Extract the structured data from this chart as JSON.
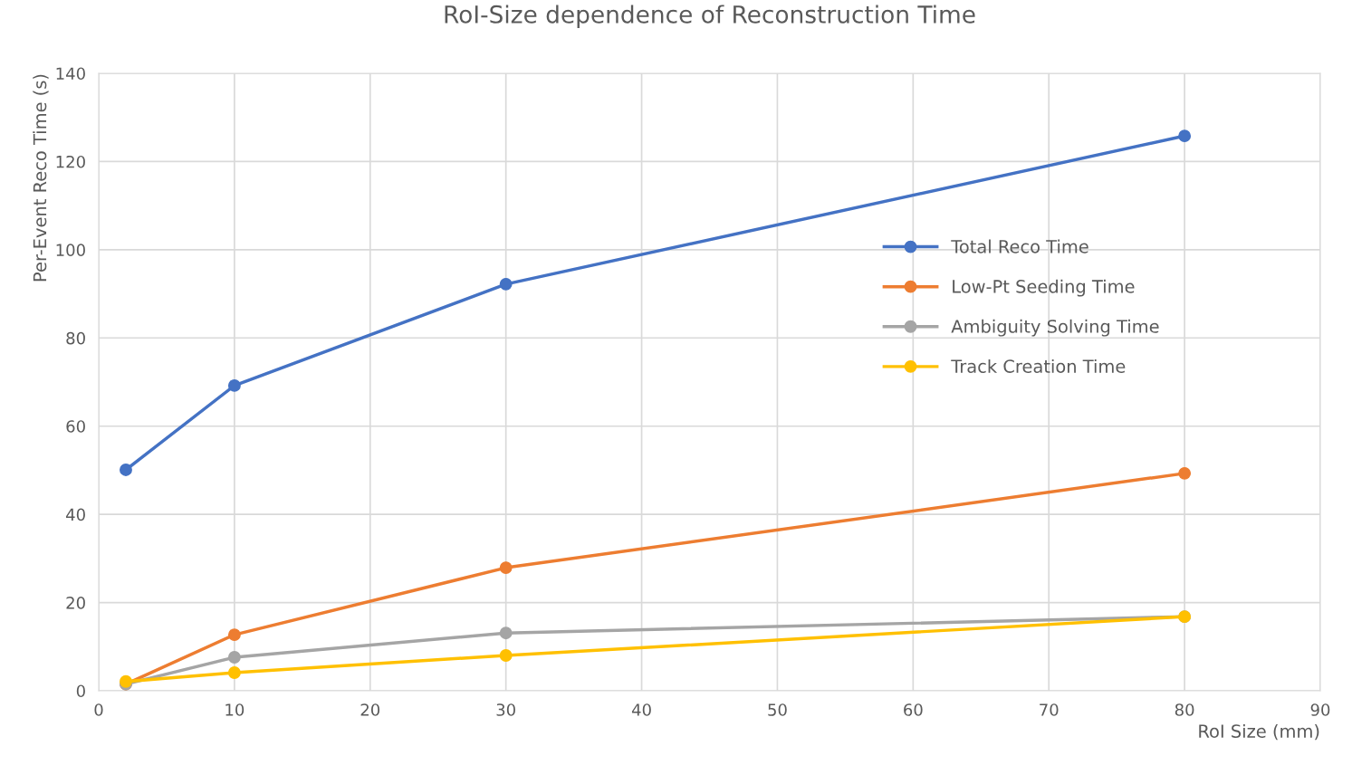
{
  "chart_data": {
    "type": "line",
    "title": "RoI-Size dependence of Reconstruction Time",
    "xlabel": "RoI Size (mm)",
    "ylabel": "Per-Event Reco Time (s)",
    "x": [
      2,
      10,
      30,
      80
    ],
    "series": [
      {
        "name": "Total Reco Time",
        "color": "#4472c4",
        "values": [
          50.1,
          69.2,
          92.2,
          125.8
        ]
      },
      {
        "name": "Low-Pt Seeding Time",
        "color": "#ed7d31",
        "values": [
          1.5,
          12.7,
          27.9,
          49.3
        ]
      },
      {
        "name": "Ambiguity Solving Time",
        "color": "#a5a5a5",
        "values": [
          1.5,
          7.6,
          13.1,
          16.8
        ]
      },
      {
        "name": "Track Creation Time",
        "color": "#ffc000",
        "values": [
          2.1,
          4.1,
          8.0,
          16.8
        ]
      }
    ],
    "xlim": [
      0,
      90
    ],
    "xticks": [
      0,
      10,
      20,
      30,
      40,
      50,
      60,
      70,
      80,
      90
    ],
    "ylim": [
      0,
      140
    ],
    "yticks": [
      0,
      20,
      40,
      60,
      80,
      100,
      120,
      140
    ],
    "grid": true,
    "legend": "right",
    "marker": "circle",
    "line_style": "solid"
  }
}
